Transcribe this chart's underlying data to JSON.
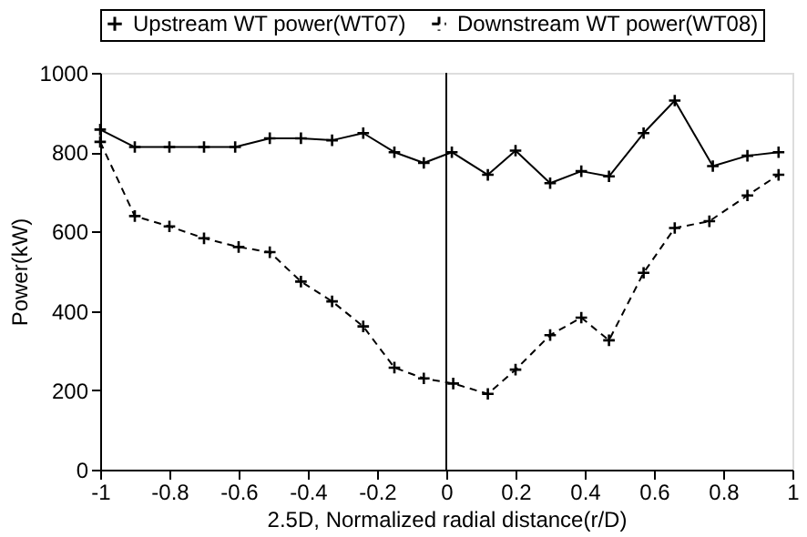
{
  "chart_data": {
    "type": "line",
    "xlabel": "2.5D, Normalized radial distance(r/D)",
    "ylabel": "Power(kW)",
    "xlim": [
      -1,
      1
    ],
    "xticks": [
      -1,
      -0.8,
      -0.6,
      -0.4,
      -0.2,
      0,
      0.2,
      0.4,
      0.6,
      0.8,
      1
    ],
    "ylim": [
      0,
      1000
    ],
    "yticks": [
      0,
      200,
      400,
      600,
      800,
      1000
    ],
    "grid": false,
    "legend": "top",
    "ref_lines": [
      {
        "axis": "x",
        "value": 0,
        "color": "#000000"
      }
    ],
    "series": [
      {
        "name": "Upstream WT power(WT07)",
        "color": "#000000",
        "marker": "cross",
        "line_style": "solid",
        "x": [
          -1,
          -0.9,
          -0.8,
          -0.7,
          -0.61,
          -0.51,
          -0.42,
          -0.33,
          -0.24,
          -0.15,
          -0.065,
          0.016,
          0.12,
          0.2,
          0.3,
          0.39,
          0.47,
          0.57,
          0.66,
          0.77,
          0.87,
          0.96
        ],
        "values": [
          857,
          813,
          813,
          813,
          813,
          835,
          835,
          830,
          848,
          800,
          773,
          800,
          743,
          804,
          722,
          752,
          739,
          848,
          930,
          765,
          791,
          800
        ]
      },
      {
        "name": "Downstream WT power(WT08)",
        "color": "#000000",
        "marker": "cross",
        "line_style": "dashed",
        "x": [
          -1,
          -0.9,
          -0.8,
          -0.7,
          -0.6,
          -0.51,
          -0.42,
          -0.33,
          -0.24,
          -0.15,
          -0.065,
          0.02,
          0.12,
          0.2,
          0.3,
          0.39,
          0.47,
          0.57,
          0.66,
          0.76,
          0.87,
          0.96
        ],
        "values": [
          826,
          639,
          613,
          583,
          561,
          548,
          474,
          424,
          361,
          257,
          230,
          217,
          191,
          252,
          339,
          383,
          326,
          496,
          609,
          626,
          691,
          743
        ]
      }
    ]
  }
}
